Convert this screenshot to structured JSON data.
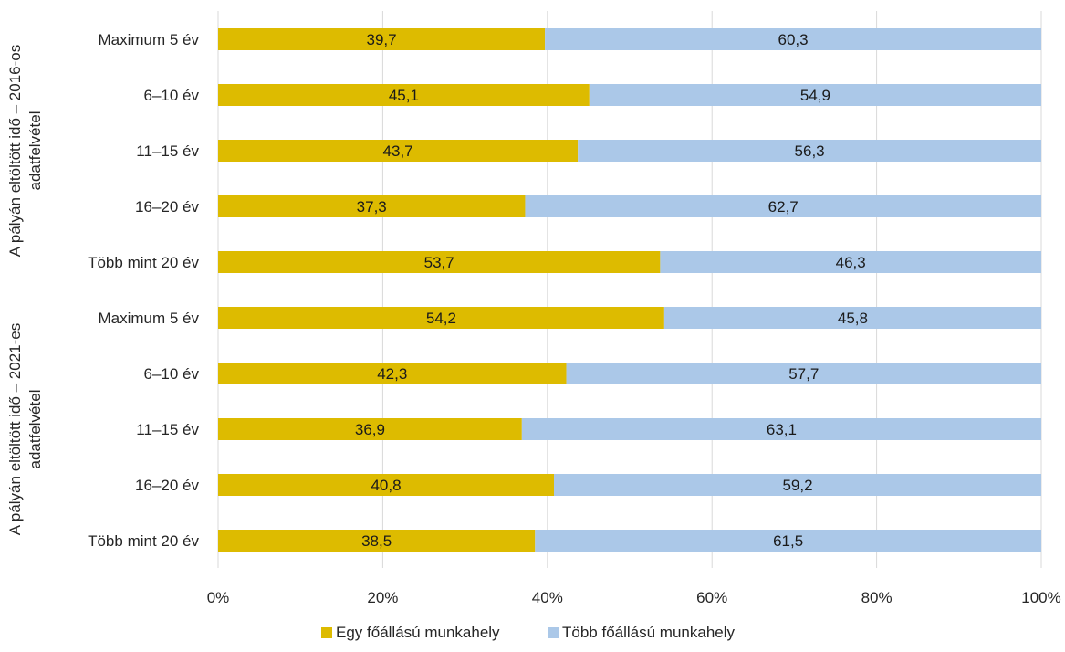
{
  "chart_data": {
    "type": "bar",
    "orientation": "horizontal",
    "stacked": "percent",
    "categories": [
      "Maximum 5 év",
      "6–10 év",
      "11–15 év",
      "16–20 év",
      "Több mint 20 év",
      "Maximum 5 év",
      "6–10 év",
      "11–15 év",
      "16–20 év",
      "Több mint 20 év"
    ],
    "groups": [
      {
        "label": [
          "A pályán eltöltött idő – 2016-os",
          "adatfelvétel"
        ],
        "categories": [
          "Maximum 5 év",
          "6–10 év",
          "11–15 év",
          "16–20 év",
          "Több mint 20 év"
        ]
      },
      {
        "label": [
          "A pályán eltöltött idő – 2021-es",
          "adatfelvétel"
        ],
        "categories": [
          "Maximum 5 év",
          "6–10 év",
          "11–15 év",
          "16–20 év",
          "Több mint 20 év"
        ]
      }
    ],
    "series": [
      {
        "name": "Egy főállású munkahely",
        "color": "#DDBB00",
        "values": [
          39.7,
          45.1,
          43.7,
          37.3,
          53.7,
          54.2,
          42.3,
          36.9,
          40.8,
          38.5
        ],
        "labels": [
          "39,7",
          "45,1",
          "43,7",
          "37,3",
          "53,7",
          "54,2",
          "42,3",
          "36,9",
          "40,8",
          "38,5"
        ]
      },
      {
        "name": "Több főállású munkahely",
        "color": "#ABC8E8",
        "values": [
          60.3,
          54.9,
          56.3,
          62.7,
          46.3,
          45.8,
          57.7,
          63.1,
          59.2,
          61.5
        ],
        "labels": [
          "60,3",
          "54,9",
          "56,3",
          "62,7",
          "46,3",
          "45,8",
          "57,7",
          "63,1",
          "59,2",
          "61,5"
        ]
      }
    ],
    "xlim": [
      0,
      100
    ],
    "x_ticks": [
      0,
      20,
      40,
      60,
      80,
      100
    ],
    "x_tick_labels": [
      "0%",
      "20%",
      "40%",
      "60%",
      "80%",
      "100%"
    ],
    "grid": "vertical",
    "legend": "bottom"
  }
}
